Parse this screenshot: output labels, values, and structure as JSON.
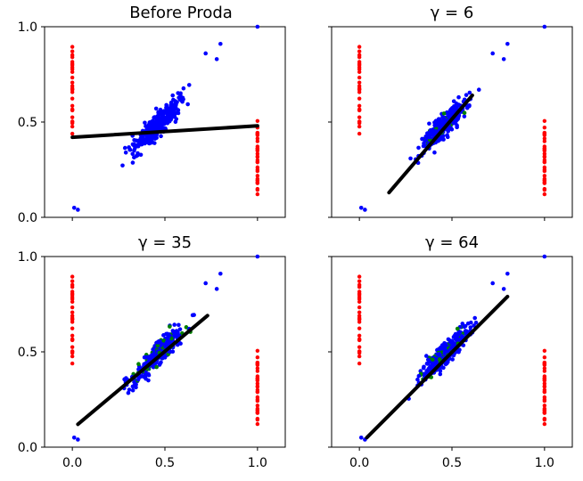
{
  "colors": {
    "cluster": "#0000ff",
    "extreme": "#ff0000",
    "adjusted": "#008000",
    "fit": "#000000"
  },
  "chart_data": [
    {
      "type": "scatter",
      "title": "Before Proda",
      "xlim": [
        -0.15,
        1.15
      ],
      "ylim": [
        0.0,
        1.0
      ],
      "xticks": [],
      "yticks": [
        {
          "v": 0.0,
          "label": "0.0"
        },
        {
          "v": 0.5,
          "label": "0.5"
        },
        {
          "v": 1.0,
          "label": "1.0"
        }
      ],
      "fit_line": {
        "x": [
          0.0,
          1.0
        ],
        "y": [
          0.42,
          0.48
        ]
      },
      "extreme_points": {
        "x0_range": [
          0.43,
          0.91
        ],
        "x1_range": [
          0.09,
          0.56
        ]
      },
      "cluster": {
        "slope": 0.95,
        "intercept": 0.05,
        "x_range": [
          0.03,
          0.82
        ],
        "outlier": [
          1.0,
          1.0
        ]
      },
      "green_fraction": 0.0
    },
    {
      "type": "scatter",
      "title": "γ = 6",
      "xlim": [
        -0.15,
        1.15
      ],
      "ylim": [
        0.0,
        1.0
      ],
      "xticks": [],
      "yticks": [],
      "fit_line": {
        "x": [
          0.16,
          0.61
        ],
        "y": [
          0.13,
          0.64
        ]
      },
      "extreme_points": {
        "x0_range": [
          0.43,
          0.91
        ],
        "x1_range": [
          0.09,
          0.56
        ]
      },
      "cluster": {
        "slope": 0.95,
        "intercept": 0.05,
        "x_range": [
          0.03,
          0.82
        ],
        "outlier": [
          1.0,
          1.0
        ]
      },
      "green_fraction": 0.04
    },
    {
      "type": "scatter",
      "title": "γ = 35",
      "xlim": [
        -0.15,
        1.15
      ],
      "ylim": [
        0.0,
        1.0
      ],
      "xticks": [
        {
          "v": 0.0,
          "label": "0.0"
        },
        {
          "v": 0.5,
          "label": "0.5"
        },
        {
          "v": 1.0,
          "label": "1.0"
        }
      ],
      "yticks": [
        {
          "v": 0.0,
          "label": "0.0"
        },
        {
          "v": 0.5,
          "label": "0.5"
        },
        {
          "v": 1.0,
          "label": "1.0"
        }
      ],
      "fit_line": {
        "x": [
          0.03,
          0.73
        ],
        "y": [
          0.12,
          0.69
        ]
      },
      "extreme_points": {
        "x0_range": [
          0.43,
          0.91
        ],
        "x1_range": [
          0.09,
          0.56
        ]
      },
      "cluster": {
        "slope": 0.95,
        "intercept": 0.05,
        "x_range": [
          0.03,
          0.82
        ],
        "outlier": [
          1.0,
          1.0
        ]
      },
      "green_fraction": 0.12
    },
    {
      "type": "scatter",
      "title": "γ = 64",
      "xlim": [
        -0.15,
        1.15
      ],
      "ylim": [
        0.0,
        1.0
      ],
      "xticks": [
        {
          "v": 0.0,
          "label": "0.0"
        },
        {
          "v": 0.5,
          "label": "0.5"
        },
        {
          "v": 1.0,
          "label": "1.0"
        }
      ],
      "yticks": [],
      "fit_line": {
        "x": [
          0.04,
          0.8
        ],
        "y": [
          0.05,
          0.79
        ]
      },
      "extreme_points": {
        "x0_range": [
          0.43,
          0.91
        ],
        "x1_range": [
          0.09,
          0.56
        ]
      },
      "cluster": {
        "slope": 0.95,
        "intercept": 0.05,
        "x_range": [
          0.03,
          0.82
        ],
        "outlier": [
          1.0,
          1.0
        ]
      },
      "green_fraction": 0.12
    }
  ]
}
